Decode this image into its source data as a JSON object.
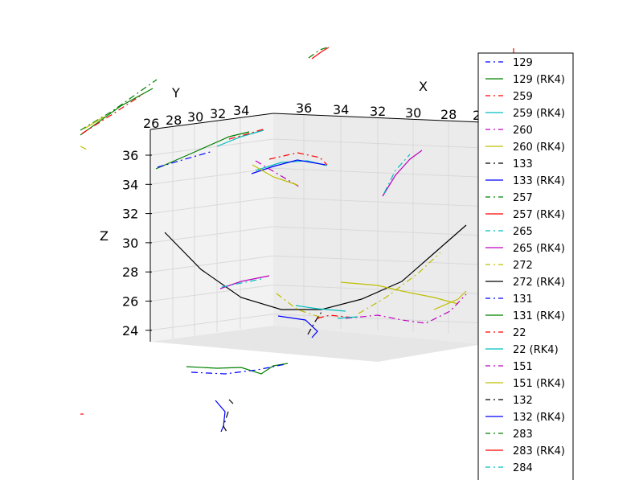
{
  "chart_data": {
    "type": "line",
    "projection": "3d",
    "xlabel": "X",
    "ylabel": "Y",
    "zlabel": "Z",
    "x_ticks": [
      "36",
      "34",
      "32",
      "30",
      "28",
      "2"
    ],
    "y_ticks": [
      "26",
      "28",
      "30",
      "32",
      "34"
    ],
    "z_ticks": [
      "36",
      "34",
      "32",
      "30",
      "28",
      "26",
      "24"
    ],
    "zlim": [
      23,
      37.5
    ],
    "grid": true,
    "legend_position": "right",
    "series": [
      {
        "name": "129",
        "color": "#0000ff",
        "style": "dashdot"
      },
      {
        "name": "129 (RK4)",
        "color": "#008000",
        "style": "solid"
      },
      {
        "name": "259",
        "color": "#ff0000",
        "style": "dashdot"
      },
      {
        "name": "259 (RK4)",
        "color": "#00bfbf",
        "style": "solid"
      },
      {
        "name": "260",
        "color": "#bf00bf",
        "style": "dashdot"
      },
      {
        "name": "260 (RK4)",
        "color": "#bfbf00",
        "style": "solid"
      },
      {
        "name": "133",
        "color": "#000000",
        "style": "dashdot"
      },
      {
        "name": "133 (RK4)",
        "color": "#0000ff",
        "style": "solid"
      },
      {
        "name": "257",
        "color": "#008000",
        "style": "dashdot"
      },
      {
        "name": "257 (RK4)",
        "color": "#ff0000",
        "style": "solid"
      },
      {
        "name": "265",
        "color": "#00bfbf",
        "style": "dashdot"
      },
      {
        "name": "265 (RK4)",
        "color": "#bf00bf",
        "style": "solid"
      },
      {
        "name": "272",
        "color": "#bfbf00",
        "style": "dashdot"
      },
      {
        "name": "272 (RK4)",
        "color": "#000000",
        "style": "solid"
      },
      {
        "name": "131",
        "color": "#0000ff",
        "style": "dashdot"
      },
      {
        "name": "131 (RK4)",
        "color": "#008000",
        "style": "solid"
      },
      {
        "name": "22",
        "color": "#ff0000",
        "style": "dashdot"
      },
      {
        "name": "22 (RK4)",
        "color": "#00bfbf",
        "style": "solid"
      },
      {
        "name": "151",
        "color": "#bf00bf",
        "style": "dashdot"
      },
      {
        "name": "151 (RK4)",
        "color": "#bfbf00",
        "style": "solid"
      },
      {
        "name": "132",
        "color": "#000000",
        "style": "dashdot"
      },
      {
        "name": "132 (RK4)",
        "color": "#0000ff",
        "style": "solid"
      },
      {
        "name": "283",
        "color": "#008000",
        "style": "dashdot"
      },
      {
        "name": "283 (RK4)",
        "color": "#ff0000",
        "style": "solid"
      },
      {
        "name": "284",
        "color": "#00bfbf",
        "style": "dashdot"
      }
    ]
  }
}
